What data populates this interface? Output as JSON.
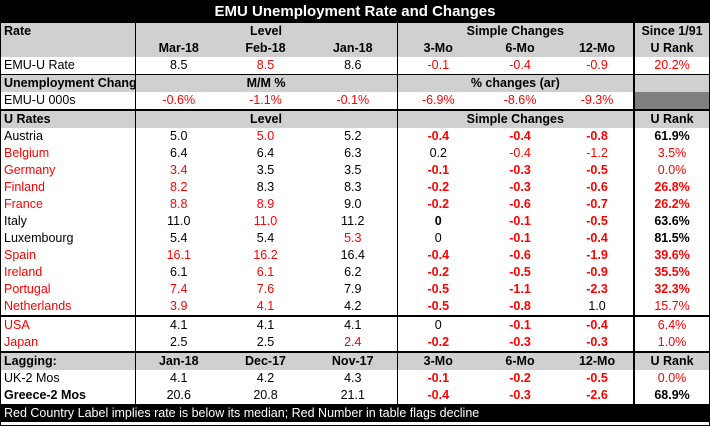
{
  "title": "EMU Unemployment Rate and Changes",
  "section1": {
    "header": {
      "label": "Rate",
      "level": "Level",
      "changes": "Simple Changes",
      "since": "Since 1/91"
    },
    "subheader": {
      "cols": [
        "Mar-18",
        "Feb-18",
        "Jan-18",
        "3-Mo",
        "6-Mo",
        "12-Mo"
      ],
      "rank": "U Rank"
    },
    "row": {
      "name": "EMU-U Rate",
      "vals": [
        "8.5",
        "8.5",
        "8.6",
        "-0.1",
        "-0.4",
        "-0.9"
      ],
      "rank": "20.2%"
    }
  },
  "section2": {
    "header": {
      "label": "Unemployment Changes",
      "mm": "M/M %",
      "pct": "% changes (ar)"
    },
    "row": {
      "name": "EMU-U 000s",
      "vals": [
        "-0.6%",
        "-1.1%",
        "-0.1%",
        "-6.9%",
        "-8.6%",
        "-9.3%"
      ]
    }
  },
  "section3": {
    "header": {
      "label": "U Rates",
      "level": "Level",
      "changes": "Simple Changes",
      "rank": "U Rank"
    },
    "rows": [
      {
        "name": "Austria",
        "vals": [
          "5.0",
          "5.0",
          "5.2",
          "-0.4",
          "-0.4",
          "-0.8"
        ],
        "rank": "61.9%"
      },
      {
        "name": "Belgium",
        "vals": [
          "6.4",
          "6.4",
          "6.3",
          "0.2",
          "-0.4",
          "-1.2"
        ],
        "rank": "3.5%"
      },
      {
        "name": "Germany",
        "vals": [
          "3.4",
          "3.5",
          "3.5",
          "-0.1",
          "-0.3",
          "-0.5"
        ],
        "rank": "0.0%"
      },
      {
        "name": "Finland",
        "vals": [
          "8.2",
          "8.3",
          "8.3",
          "-0.2",
          "-0.3",
          "-0.6"
        ],
        "rank": "26.8%"
      },
      {
        "name": "France",
        "vals": [
          "8.8",
          "8.9",
          "9.0",
          "-0.2",
          "-0.6",
          "-0.7"
        ],
        "rank": "26.2%"
      },
      {
        "name": "Italy",
        "vals": [
          "11.0",
          "11.0",
          "11.2",
          "0",
          "-0.1",
          "-0.5"
        ],
        "rank": "63.6%"
      },
      {
        "name": "Luxembourg",
        "vals": [
          "5.4",
          "5.4",
          "5.3",
          "0",
          "-0.1",
          "-0.4"
        ],
        "rank": "81.5%"
      },
      {
        "name": "Spain",
        "vals": [
          "16.1",
          "16.2",
          "16.4",
          "-0.4",
          "-0.6",
          "-1.9"
        ],
        "rank": "39.6%"
      },
      {
        "name": "Ireland",
        "vals": [
          "6.1",
          "6.1",
          "6.2",
          "-0.2",
          "-0.5",
          "-0.9"
        ],
        "rank": "35.5%"
      },
      {
        "name": "Portugal",
        "vals": [
          "7.4",
          "7.6",
          "7.9",
          "-0.5",
          "-1.1",
          "-2.3"
        ],
        "rank": "32.3%"
      },
      {
        "name": "Netherlands",
        "vals": [
          "3.9",
          "4.1",
          "4.2",
          "-0.5",
          "-0.8",
          "1.0"
        ],
        "rank": "15.7%"
      }
    ],
    "rows2": [
      {
        "name": "USA",
        "vals": [
          "4.1",
          "4.1",
          "4.1",
          "0",
          "-0.1",
          "-0.4"
        ],
        "rank": "6.4%"
      },
      {
        "name": "Japan",
        "vals": [
          "2.5",
          "2.5",
          "2.4",
          "-0.2",
          "-0.3",
          "-0.3"
        ],
        "rank": "1.0%"
      }
    ]
  },
  "section4": {
    "header": {
      "label": "Lagging:",
      "cols": [
        "Jan-18",
        "Dec-17",
        "Nov-17",
        "3-Mo",
        "6-Mo",
        "12-Mo"
      ],
      "rank": "U Rank"
    },
    "rows": [
      {
        "name": "UK-2 Mos",
        "vals": [
          "4.1",
          "4.2",
          "4.3",
          "-0.1",
          "-0.2",
          "-0.5"
        ],
        "rank": "0.0%"
      },
      {
        "name": "Greece-2 Mos",
        "vals": [
          "20.6",
          "20.8",
          "21.1",
          "-0.4",
          "-0.3",
          "-2.6"
        ],
        "rank": "68.9%"
      }
    ]
  },
  "footer": "Red Country Label implies rate is below its median; Red Number in table flags decline"
}
